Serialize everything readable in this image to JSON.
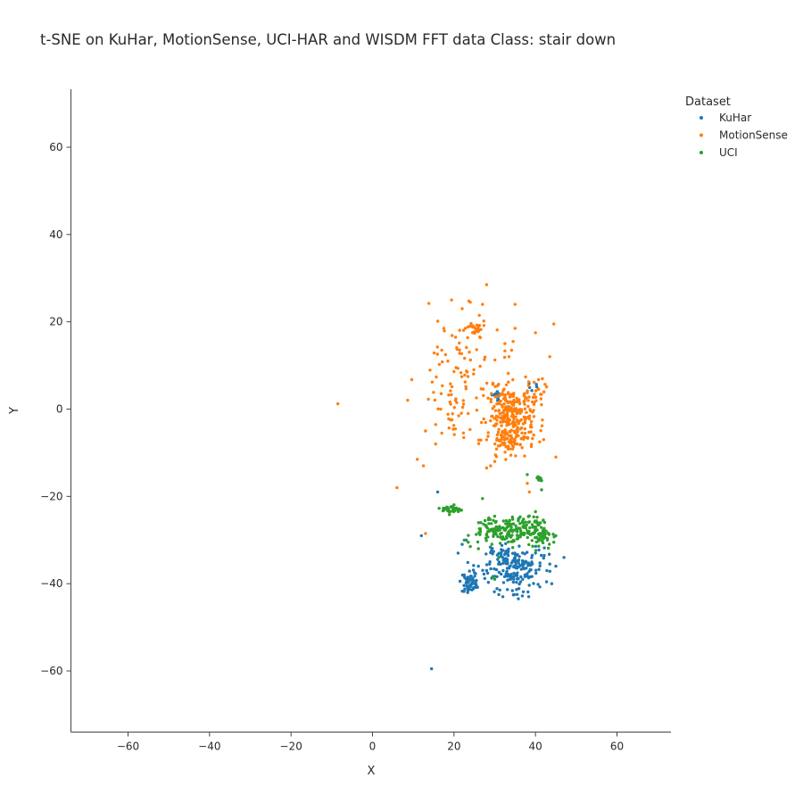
{
  "chart_data": {
    "type": "scatter",
    "title": "t-SNE on KuHar, MotionSense, UCI-HAR and WISDM   FFT data   Class: stair down",
    "xlabel": "X",
    "ylabel": "Y",
    "xlim": [
      -74,
      73
    ],
    "ylim": [
      -74,
      73
    ],
    "xticks": [
      -60,
      -40,
      -20,
      0,
      20,
      40,
      60
    ],
    "yticks": [
      60,
      40,
      20,
      0,
      -20,
      -40,
      -60
    ],
    "xtick_labels": [
      "−60",
      "−40",
      "−20",
      "0",
      "20",
      "40",
      "60"
    ],
    "ytick_labels": [
      "60",
      "40",
      "20",
      "0",
      "−20",
      "−40",
      "−60"
    ],
    "grid": false,
    "legend": {
      "title": "Dataset",
      "placement": "top-right, outside"
    },
    "series": [
      {
        "name": "KuHar",
        "color": "#1f77b4",
        "clusters": [
          {
            "center": [
              35,
              -36
            ],
            "spread": [
              3.5,
              2.8
            ],
            "count": 190
          },
          {
            "center": [
              24,
              -39.5
            ],
            "spread": [
              1.0,
              1.2
            ],
            "count": 60
          },
          {
            "center": [
              30.5,
              3
            ],
            "spread": [
              0.6,
              0.6
            ],
            "count": 12
          },
          {
            "center": [
              39,
              5
            ],
            "spread": [
              0.8,
              0.4
            ],
            "count": 6
          }
        ],
        "points": [
          [
            14.5,
            -59.5
          ],
          [
            12.0,
            -29.0
          ],
          [
            16.0,
            -19.0
          ],
          [
            22.0,
            -31.0
          ],
          [
            21.0,
            -33.0
          ],
          [
            23.0,
            -30.0
          ],
          [
            47.0,
            -34.0
          ],
          [
            44.0,
            -40.0
          ],
          [
            26.0,
            -36.0
          ],
          [
            28.0,
            -37.0
          ],
          [
            43.5,
            -35.5
          ],
          [
            45.0,
            -36.0
          ],
          [
            40.0,
            -33.0
          ],
          [
            31.0,
            -42.5
          ],
          [
            32.0,
            -43.0
          ]
        ]
      },
      {
        "name": "MotionSense",
        "color": "#ff7f0e",
        "clusters": [
          {
            "center": [
              34,
              -1.5
            ],
            "spread": [
              2.8,
              3.2
            ],
            "count": 240
          },
          {
            "center": [
              34,
              -7
            ],
            "spread": [
              3.0,
              1.5
            ],
            "count": 70
          },
          {
            "center": [
              25,
              18
            ],
            "spread": [
              1.4,
              1.2
            ],
            "count": 30
          },
          {
            "center": [
              22,
              8
            ],
            "spread": [
              5.5,
              6.5
            ],
            "count": 80
          },
          {
            "center": [
              40,
              4
            ],
            "spread": [
              2.0,
              2.0
            ],
            "count": 25
          },
          {
            "center": [
              19.5,
              0
            ],
            "spread": [
              1.5,
              3.0
            ],
            "count": 22
          }
        ],
        "points": [
          [
            -8.5,
            1.2
          ],
          [
            6.0,
            -18.0
          ],
          [
            11.0,
            -11.5
          ],
          [
            12.5,
            -13.0
          ],
          [
            13.0,
            -28.5
          ],
          [
            28.0,
            28.5
          ],
          [
            35.0,
            24.0
          ],
          [
            27.0,
            24.0
          ],
          [
            24.0,
            24.5
          ],
          [
            22.0,
            23.0
          ],
          [
            44.5,
            19.5
          ],
          [
            45.0,
            -11.0
          ],
          [
            38.0,
            -17.0
          ],
          [
            38.5,
            -19.0
          ],
          [
            28.0,
            -13.5
          ],
          [
            29.0,
            -13.0
          ],
          [
            30.0,
            -12.0
          ],
          [
            15.5,
            -8.0
          ],
          [
            13.0,
            -5.0
          ],
          [
            42.0,
            -7.0
          ],
          [
            40.0,
            17.5
          ],
          [
            43.5,
            12.0
          ],
          [
            35.0,
            18.5
          ],
          [
            34.5,
            15.5
          ],
          [
            32.5,
            15.0
          ],
          [
            33.5,
            12.0
          ],
          [
            17.0,
            13.5
          ],
          [
            17.5,
            18.5
          ],
          [
            18.5,
            11.0
          ],
          [
            20.5,
            9.5
          ]
        ]
      },
      {
        "name": "UCI",
        "color": "#2ca02c",
        "clusters": [
          {
            "center": [
              34,
              -28
            ],
            "spread": [
              3.2,
              1.6
            ],
            "count": 130
          },
          {
            "center": [
              41,
              -28.5
            ],
            "spread": [
              1.6,
              1.8
            ],
            "count": 60
          },
          {
            "center": [
              28.5,
              -27
            ],
            "spread": [
              1.5,
              1.3
            ],
            "count": 40
          },
          {
            "center": [
              19.5,
              -23
            ],
            "spread": [
              1.2,
              0.5
            ],
            "count": 35
          },
          {
            "center": [
              40.5,
              -16
            ],
            "spread": [
              1.0,
              0.4
            ],
            "count": 8
          }
        ],
        "points": [
          [
            27.0,
            -20.5
          ],
          [
            41.5,
            -18.5
          ],
          [
            38.0,
            -15.0
          ],
          [
            44.5,
            -30.5
          ],
          [
            45.0,
            -29.0
          ],
          [
            22.5,
            -30.0
          ],
          [
            23.5,
            -30.5
          ],
          [
            24.0,
            -31.5
          ],
          [
            30.0,
            -39.0
          ],
          [
            29.5,
            -38.5
          ],
          [
            31.0,
            -34.0
          ],
          [
            26.0,
            -32.0
          ],
          [
            40.0,
            -23.5
          ],
          [
            38.5,
            -24.5
          ],
          [
            36.0,
            -25.0
          ]
        ]
      }
    ]
  }
}
